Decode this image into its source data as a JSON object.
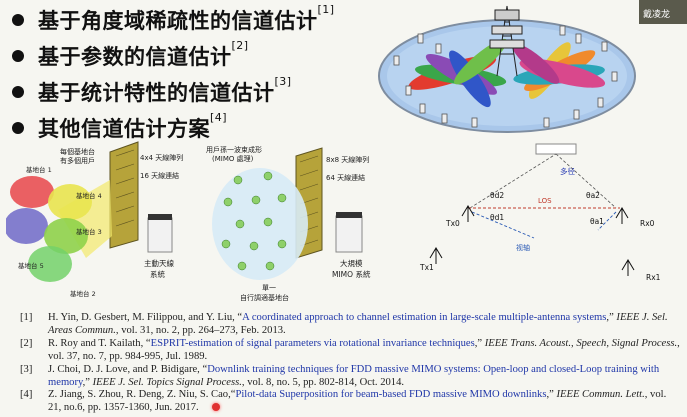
{
  "bullets": [
    {
      "text": "基于角度域稀疏性的信道估计",
      "ref": "[1]"
    },
    {
      "text": "基于参数的信道估计",
      "ref": "[2]"
    },
    {
      "text": "基于统计特性的信道估计",
      "ref": "[3]"
    },
    {
      "text": "其他信道估计方案",
      "ref": "[4]"
    }
  ],
  "webcam_name": "戴凌龙",
  "figure_left": {
    "top_label_1": "每個基地台",
    "top_label_2": "有多個用戶",
    "array_label": "4x4 天線陣列",
    "link_label": "16 天線連結",
    "bs1": "基地台 1",
    "bs2": "基地台 2",
    "bs3": "基地台 3",
    "bs4": "基地台 4",
    "bs5": "基地台 5",
    "main_line_1": "主動天線",
    "main_line_2": "系統"
  },
  "figure_mid": {
    "top_label_1": "用戶孫一波束成形",
    "top_label_2": "(MIMO 處理)",
    "array_label": "8x8 天線陣列",
    "link_label": "64 天線連結",
    "bottom_1": "單一",
    "bottom_2": "自行調適基地台",
    "main_line_1": "大規模",
    "main_line_2": "MIMO 系統"
  },
  "figure_right": {
    "multipath": "多径",
    "los": "LOS",
    "axis": "视轴",
    "tx0": "Tx0",
    "tx1": "Tx1",
    "rx0": "Rx0",
    "rx1": "Rx1",
    "theta_d2": "θd2",
    "theta_d1": "θd1",
    "theta_a2": "θa2",
    "theta_a1": "θa1"
  },
  "references": [
    {
      "num": "[1]",
      "before": "H. Yin, D. Gesbert, M. Filippou, and Y. Liu, “",
      "link": "A coordinated approach to channel estimation in large-scale multiple-antenna systems",
      "mid": ",” ",
      "journal": "IEEE J. Sel. Areas Commun.",
      "after": ", vol. 31, no. 2, pp. 264–273, Feb. 2013."
    },
    {
      "num": "[2]",
      "before": "R. Roy and T. Kailath, “",
      "link": "ESPRIT-estimation of signal parameters via rotational invariance techniques",
      "mid": ",” ",
      "journal": "IEEE Trans. Acoust., Speech, Signal Process.",
      "after": ", vol. 37, no. 7, pp. 984-995, Jul. 1989."
    },
    {
      "num": "[3]",
      "before": "J. Choi, D. J. Love, and P. Bidigare, “",
      "link": "Downlink training techniques for FDD massive MIMO systems: Open-loop and closed-Loop training with memory",
      "mid": ",” ",
      "journal": "IEEE J. Sel. Topics Signal Process.",
      "after": ", vol. 8, no. 5, pp. 802-814, Oct. 2014."
    },
    {
      "num": "[4]",
      "before": "Z. Jiang, S. Zhou, R. Deng, Z. Niu, S. Cao,“",
      "link": "Pilot-data Superposition for beam-based FDD massive MIMO downlinks",
      "mid": ",” ",
      "journal": "IEEE Commun. Lett.",
      "after": ", vol. 21, no.6, pp. 1357-1360, Jun. 2017."
    }
  ]
}
